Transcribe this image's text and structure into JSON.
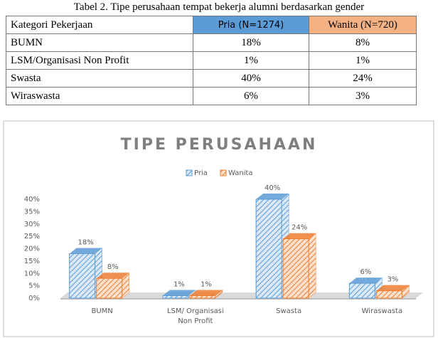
{
  "caption": "Tabel 2. Tipe perusahaan tempat bekerja alumni berdasarkan gender",
  "table": {
    "header": [
      "Kategori Pekerjaan",
      "Pria (N=1274)",
      "Wanita (N=720)"
    ],
    "rows": [
      [
        "BUMN",
        "18%",
        "8%"
      ],
      [
        "LSM/Organisasi Non Profit",
        "1%",
        "1%"
      ],
      [
        "Swasta",
        "40%",
        "24%"
      ],
      [
        "Wiraswasta",
        "6%",
        "3%"
      ]
    ]
  },
  "chart_data": {
    "type": "bar3d",
    "title": "TIPE PERUSAHAAN",
    "categories": [
      "BUMN",
      "LSM/ Organisasi Non Profit",
      "Swasta",
      "Wiraswasta"
    ],
    "series": [
      {
        "name": "Pria",
        "color": "#5b9bd5",
        "values": [
          18,
          1,
          40,
          6
        ],
        "value_labels": [
          "18%",
          "1%",
          "40%",
          "6%"
        ]
      },
      {
        "name": "Wanita",
        "color": "#ed7d31",
        "values": [
          8,
          1,
          24,
          3
        ],
        "value_labels": [
          "8%",
          "1%",
          "24%",
          "3%"
        ]
      }
    ],
    "ylim": [
      0,
      40
    ],
    "yticks": [
      {
        "value": 0,
        "label": "0%"
      },
      {
        "value": 5,
        "label": "5%"
      },
      {
        "value": 10,
        "label": "10%"
      },
      {
        "value": 15,
        "label": "15%"
      },
      {
        "value": 20,
        "label": "20%"
      },
      {
        "value": 25,
        "label": "25%"
      },
      {
        "value": 30,
        "label": "30%"
      },
      {
        "value": 35,
        "label": "35%"
      },
      {
        "value": 40,
        "label": "40%"
      }
    ]
  }
}
